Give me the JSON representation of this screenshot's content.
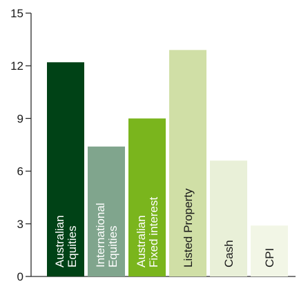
{
  "chart_data": {
    "type": "bar",
    "title": "",
    "xlabel": "",
    "ylabel": "",
    "ylim": [
      0,
      15
    ],
    "yticks": [
      0,
      3,
      6,
      9,
      12,
      15
    ],
    "grid": false,
    "legend": "none",
    "categories": [
      [
        "Australian",
        "Equities"
      ],
      [
        "International",
        "Equities"
      ],
      [
        "Australian",
        "Fixed interest"
      ],
      [
        "Listed Property"
      ],
      [
        "Cash"
      ],
      [
        "CPI"
      ]
    ],
    "values": [
      12.2,
      7.4,
      9.0,
      12.9,
      6.6,
      2.9
    ],
    "bar_colors": [
      "#004216",
      "#80a58d",
      "#7ab51d",
      "#d0dfa6",
      "#e9f0d8",
      "#f2f6e6"
    ],
    "label_colors": [
      "#ffffff",
      "#ffffff",
      "#ffffff",
      "#1a1a1a",
      "#1a1a1a",
      "#1a1a1a"
    ],
    "axis_color": "#2b2b2b"
  }
}
